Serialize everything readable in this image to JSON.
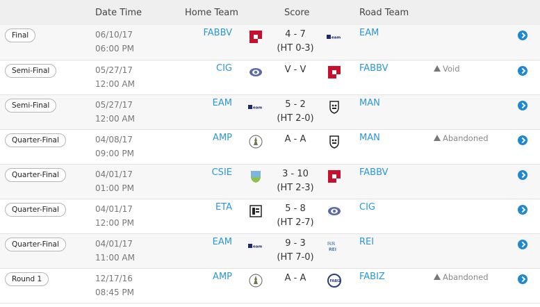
{
  "header": {
    "date_time": "Date Time",
    "home_team": "Home Team",
    "score": "Score",
    "road_team": "Road Team"
  },
  "matches": [
    {
      "round": "Final",
      "date": "06/10/17",
      "time": "06:00 PM",
      "home": "FABBV",
      "home_logo": "fabbv-logo",
      "score": "4 - 7",
      "ht": "(HT 0-3)",
      "away": "EAM",
      "away_logo": "eam-logo",
      "note": ""
    },
    {
      "round": "Semi-Final",
      "date": "05/27/17",
      "time": "12:00 AM",
      "home": "CIG",
      "home_logo": "cig-logo",
      "score": "V - V",
      "ht": "",
      "away": "FABBV",
      "away_logo": "fabbv-logo",
      "note": "Void"
    },
    {
      "round": "Semi-Final",
      "date": "05/27/17",
      "time": "12:00 AM",
      "home": "EAM",
      "home_logo": "eam-logo",
      "score": "5 - 2",
      "ht": "(HT 2-0)",
      "away": "MAN",
      "away_logo": "man-logo",
      "note": ""
    },
    {
      "round": "Quarter-Final",
      "date": "04/08/17",
      "time": "09:00 PM",
      "home": "AMP",
      "home_logo": "amp-logo",
      "score": "A - A",
      "ht": "",
      "away": "MAN",
      "away_logo": "man-logo",
      "note": "Abandoned"
    },
    {
      "round": "Quarter-Final",
      "date": "04/01/17",
      "time": "01:00 PM",
      "home": "CSIE",
      "home_logo": "csie-logo",
      "score": "3 - 10",
      "ht": "(HT 2-3)",
      "away": "FABBV",
      "away_logo": "fabbv-logo",
      "note": ""
    },
    {
      "round": "Quarter-Final",
      "date": "04/01/17",
      "time": "12:00 PM",
      "home": "ETA",
      "home_logo": "eta-logo",
      "score": "5 - 8",
      "ht": "(HT 2-7)",
      "away": "CIG",
      "away_logo": "cig-logo",
      "note": ""
    },
    {
      "round": "Quarter-Final",
      "date": "04/01/17",
      "time": "11:00 AM",
      "home": "EAM",
      "home_logo": "eam-logo",
      "score": "9 - 3",
      "ht": "(HT 7-0)",
      "away": "REI",
      "away_logo": "rei-logo",
      "note": ""
    },
    {
      "round": "Round 1",
      "date": "12/17/16",
      "time": "08:45 PM",
      "home": "AMP",
      "home_logo": "amp-logo",
      "score": "A - A",
      "ht": "",
      "away": "FABIZ",
      "away_logo": "fabiz-logo",
      "note": "Abandoned"
    }
  ],
  "colors": {
    "link": "#2a97d6",
    "accent": "#1e88d2",
    "fabbv": "#c8102e"
  }
}
